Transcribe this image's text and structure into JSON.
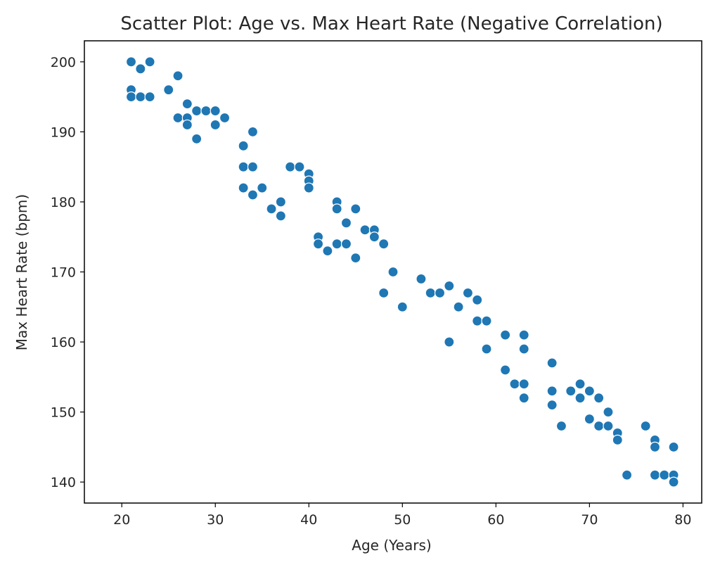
{
  "chart_data": {
    "type": "scatter",
    "title": "Scatter Plot: Age vs. Max Heart Rate (Negative Correlation)",
    "xlabel": "Age (Years)",
    "ylabel": "Max Heart Rate (bpm)",
    "xlim": [
      16,
      82
    ],
    "ylim": [
      137,
      203
    ],
    "xticks": [
      20,
      30,
      40,
      50,
      60,
      70,
      80
    ],
    "yticks": [
      140,
      150,
      160,
      170,
      180,
      190,
      200
    ],
    "xtick_labels": [
      "20",
      "30",
      "40",
      "50",
      "60",
      "70",
      "80"
    ],
    "ytick_labels": [
      "140",
      "150",
      "160",
      "170",
      "180",
      "190",
      "200"
    ],
    "grid": false,
    "marker_color": "#1f77b4",
    "marker_edge_color": "#ffffff",
    "points": [
      {
        "x": 21,
        "y": 200
      },
      {
        "x": 21,
        "y": 196
      },
      {
        "x": 21,
        "y": 195
      },
      {
        "x": 22,
        "y": 199
      },
      {
        "x": 22,
        "y": 195
      },
      {
        "x": 23,
        "y": 200
      },
      {
        "x": 23,
        "y": 195
      },
      {
        "x": 25,
        "y": 196
      },
      {
        "x": 26,
        "y": 198
      },
      {
        "x": 26,
        "y": 192
      },
      {
        "x": 27,
        "y": 194
      },
      {
        "x": 27,
        "y": 192
      },
      {
        "x": 27,
        "y": 191
      },
      {
        "x": 28,
        "y": 193
      },
      {
        "x": 28,
        "y": 189
      },
      {
        "x": 29,
        "y": 193
      },
      {
        "x": 30,
        "y": 193
      },
      {
        "x": 30,
        "y": 191
      },
      {
        "x": 31,
        "y": 192
      },
      {
        "x": 33,
        "y": 188
      },
      {
        "x": 33,
        "y": 185
      },
      {
        "x": 33,
        "y": 182
      },
      {
        "x": 34,
        "y": 190
      },
      {
        "x": 34,
        "y": 185
      },
      {
        "x": 34,
        "y": 181
      },
      {
        "x": 35,
        "y": 182
      },
      {
        "x": 36,
        "y": 179
      },
      {
        "x": 37,
        "y": 180
      },
      {
        "x": 37,
        "y": 178
      },
      {
        "x": 38,
        "y": 185
      },
      {
        "x": 39,
        "y": 185
      },
      {
        "x": 40,
        "y": 184
      },
      {
        "x": 40,
        "y": 183
      },
      {
        "x": 40,
        "y": 182
      },
      {
        "x": 41,
        "y": 175
      },
      {
        "x": 41,
        "y": 174
      },
      {
        "x": 42,
        "y": 173
      },
      {
        "x": 43,
        "y": 180
      },
      {
        "x": 43,
        "y": 179
      },
      {
        "x": 43,
        "y": 174
      },
      {
        "x": 44,
        "y": 177
      },
      {
        "x": 44,
        "y": 174
      },
      {
        "x": 45,
        "y": 179
      },
      {
        "x": 45,
        "y": 172
      },
      {
        "x": 46,
        "y": 176
      },
      {
        "x": 47,
        "y": 176
      },
      {
        "x": 47,
        "y": 175
      },
      {
        "x": 48,
        "y": 174
      },
      {
        "x": 48,
        "y": 167
      },
      {
        "x": 49,
        "y": 170
      },
      {
        "x": 50,
        "y": 165
      },
      {
        "x": 52,
        "y": 169
      },
      {
        "x": 53,
        "y": 167
      },
      {
        "x": 54,
        "y": 167
      },
      {
        "x": 55,
        "y": 168
      },
      {
        "x": 55,
        "y": 160
      },
      {
        "x": 56,
        "y": 165
      },
      {
        "x": 57,
        "y": 167
      },
      {
        "x": 58,
        "y": 166
      },
      {
        "x": 58,
        "y": 163
      },
      {
        "x": 59,
        "y": 163
      },
      {
        "x": 59,
        "y": 159
      },
      {
        "x": 61,
        "y": 161
      },
      {
        "x": 61,
        "y": 156
      },
      {
        "x": 62,
        "y": 154
      },
      {
        "x": 63,
        "y": 161
      },
      {
        "x": 63,
        "y": 159
      },
      {
        "x": 63,
        "y": 154
      },
      {
        "x": 63,
        "y": 152
      },
      {
        "x": 66,
        "y": 157
      },
      {
        "x": 66,
        "y": 153
      },
      {
        "x": 66,
        "y": 151
      },
      {
        "x": 67,
        "y": 148
      },
      {
        "x": 68,
        "y": 153
      },
      {
        "x": 69,
        "y": 154
      },
      {
        "x": 69,
        "y": 152
      },
      {
        "x": 70,
        "y": 153
      },
      {
        "x": 70,
        "y": 149
      },
      {
        "x": 71,
        "y": 152
      },
      {
        "x": 71,
        "y": 148
      },
      {
        "x": 72,
        "y": 150
      },
      {
        "x": 72,
        "y": 148
      },
      {
        "x": 73,
        "y": 147
      },
      {
        "x": 73,
        "y": 146
      },
      {
        "x": 74,
        "y": 141
      },
      {
        "x": 76,
        "y": 148
      },
      {
        "x": 77,
        "y": 146
      },
      {
        "x": 77,
        "y": 145
      },
      {
        "x": 77,
        "y": 141
      },
      {
        "x": 78,
        "y": 141
      },
      {
        "x": 79,
        "y": 145
      },
      {
        "x": 79,
        "y": 141
      },
      {
        "x": 79,
        "y": 140
      }
    ]
  }
}
